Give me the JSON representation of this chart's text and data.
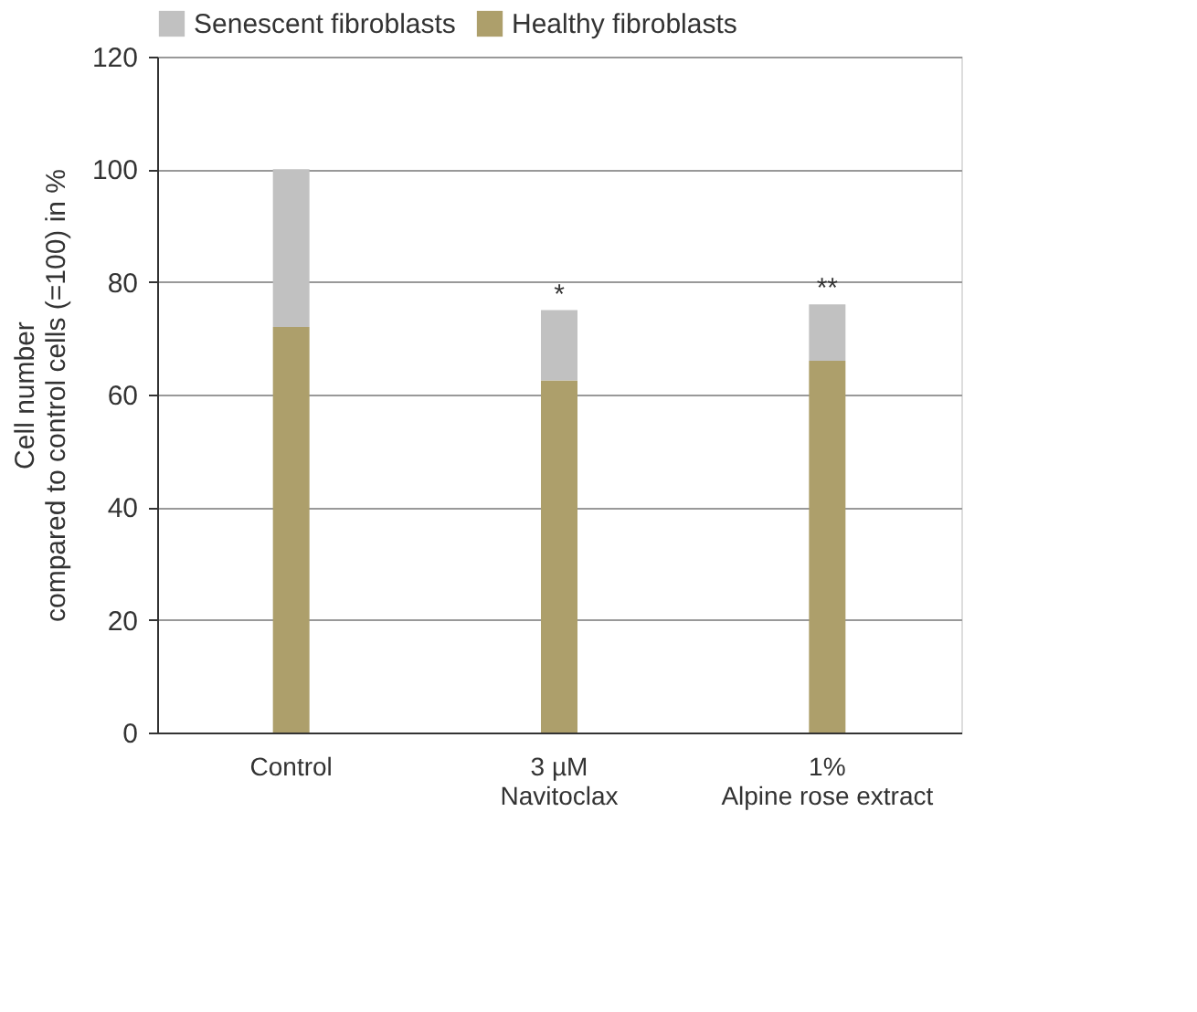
{
  "chart_data": {
    "type": "bar",
    "stacked": true,
    "ylabel": "Cell number\ncompared to control cells (=100) in %",
    "categories": [
      "Control",
      "3 µM\nNavitoclax",
      "1%\nAlpine rose extract"
    ],
    "series": [
      {
        "name": "Healthy fibroblasts",
        "color": "#ad9f6b",
        "values": [
          72,
          62.5,
          66
        ]
      },
      {
        "name": "Senescent fibroblasts",
        "color": "#c1c1c1",
        "values": [
          28,
          12.5,
          10
        ]
      }
    ],
    "ylim": [
      0,
      120
    ],
    "yticks": [
      0,
      20,
      40,
      60,
      80,
      100,
      120
    ],
    "grid": "y",
    "legend": "top left",
    "annotations": [
      {
        "text": "*",
        "x": "3 µM\nNavitoclax",
        "y": 75
      },
      {
        "text": "**",
        "x": "1%\nAlpine rose extract",
        "y": 76
      }
    ]
  }
}
